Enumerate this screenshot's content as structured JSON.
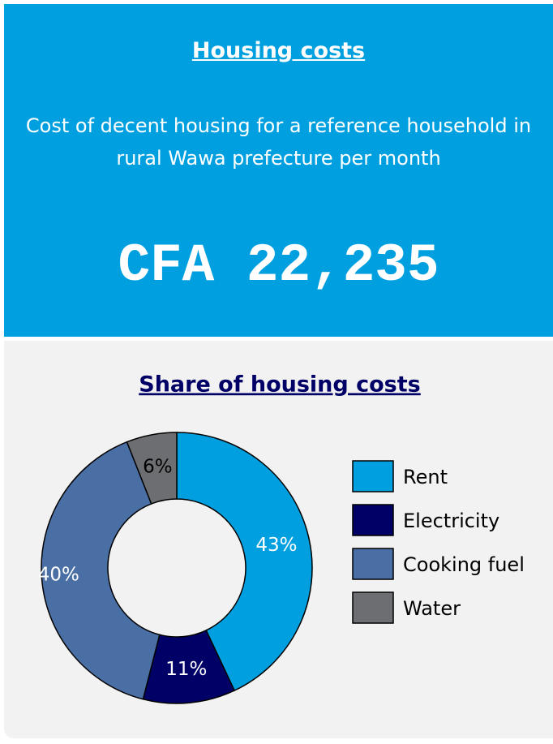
{
  "header": {
    "title": "Housing costs",
    "description": "Cost of decent housing for a reference household in rural Wawa prefecture per month",
    "amount": "CFA 22,235"
  },
  "chart_data": {
    "type": "pie",
    "title": "Share of housing costs",
    "categories": [
      "Rent",
      "Electricity",
      "Cooking fuel",
      "Water"
    ],
    "values": [
      43,
      11,
      40,
      6
    ],
    "value_labels": [
      "43%",
      "11%",
      "40%",
      "6%"
    ],
    "colors": [
      "#00a0e0",
      "#000066",
      "#4a6fa5",
      "#6d6e71"
    ]
  }
}
